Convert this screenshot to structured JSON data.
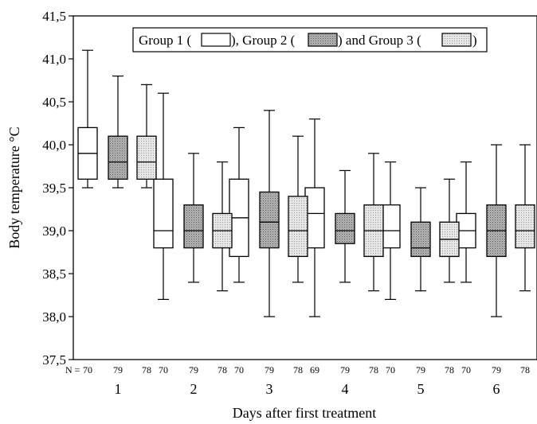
{
  "chart_data": {
    "type": "boxplot",
    "xlabel": "Days after first treatment",
    "ylabel": "Body temperature °C",
    "ylim": [
      37.5,
      41.5
    ],
    "yticks": [
      "37,5",
      "38,0",
      "38,5",
      "39,0",
      "39,5",
      "40,0",
      "40,5",
      "41,0",
      "41,5"
    ],
    "ytick_values": [
      37.5,
      38.0,
      38.5,
      39.0,
      39.5,
      40.0,
      40.5,
      41.0,
      41.5
    ],
    "categories": [
      "1",
      "2",
      "3",
      "4",
      "5",
      "6"
    ],
    "n_prefix": "N =",
    "legend": {
      "g1": "Group 1 (",
      "g2": "), Group 2 (",
      "g3": ") and Group 3 (",
      "end": ")"
    },
    "series": [
      {
        "name": "Group 1",
        "fill": "#ffffff",
        "n": [
          "70",
          "70",
          "70",
          "69",
          "70",
          "70"
        ],
        "boxes": [
          {
            "min": 39.5,
            "q1": 39.6,
            "median": 39.9,
            "q3": 40.2,
            "max": 41.1
          },
          {
            "min": 38.2,
            "q1": 38.8,
            "median": 39.0,
            "q3": 39.6,
            "max": 40.6
          },
          {
            "min": 38.4,
            "q1": 38.7,
            "median": 39.15,
            "q3": 39.6,
            "max": 40.2
          },
          {
            "min": 38.0,
            "q1": 38.8,
            "median": 39.2,
            "q3": 39.5,
            "max": 40.3
          },
          {
            "min": 38.2,
            "q1": 38.8,
            "median": 39.0,
            "q3": 39.3,
            "max": 39.8
          },
          {
            "min": 38.4,
            "q1": 38.8,
            "median": 39.0,
            "q3": 39.2,
            "max": 39.8
          }
        ]
      },
      {
        "name": "Group 2",
        "fill": "#a9a9a9",
        "n": [
          "79",
          "79",
          "79",
          "79",
          "79",
          "79"
        ],
        "boxes": [
          {
            "min": 39.5,
            "q1": 39.6,
            "median": 39.8,
            "q3": 40.1,
            "max": 40.8
          },
          {
            "min": 38.4,
            "q1": 38.8,
            "median": 39.0,
            "q3": 39.3,
            "max": 39.9
          },
          {
            "min": 38.0,
            "q1": 38.8,
            "median": 39.1,
            "q3": 39.45,
            "max": 40.4
          },
          {
            "min": 38.4,
            "q1": 38.85,
            "median": 39.0,
            "q3": 39.2,
            "max": 39.7
          },
          {
            "min": 38.3,
            "q1": 38.7,
            "median": 38.8,
            "q3": 39.1,
            "max": 39.5
          },
          {
            "min": 38.0,
            "q1": 38.7,
            "median": 39.0,
            "q3": 39.3,
            "max": 40.0
          }
        ]
      },
      {
        "name": "Group 3",
        "fill": "#dedede",
        "n": [
          "78",
          "78",
          "78",
          "78",
          "78",
          "78"
        ],
        "boxes": [
          {
            "min": 39.5,
            "q1": 39.6,
            "median": 39.8,
            "q3": 40.1,
            "max": 40.7
          },
          {
            "min": 38.3,
            "q1": 38.8,
            "median": 39.0,
            "q3": 39.2,
            "max": 39.8
          },
          {
            "min": 38.4,
            "q1": 38.7,
            "median": 39.0,
            "q3": 39.4,
            "max": 40.1
          },
          {
            "min": 38.3,
            "q1": 38.7,
            "median": 39.0,
            "q3": 39.3,
            "max": 39.9
          },
          {
            "min": 38.4,
            "q1": 38.7,
            "median": 38.9,
            "q3": 39.1,
            "max": 39.6
          },
          {
            "min": 38.3,
            "q1": 38.8,
            "median": 39.0,
            "q3": 39.3,
            "max": 40.0
          }
        ]
      }
    ]
  }
}
